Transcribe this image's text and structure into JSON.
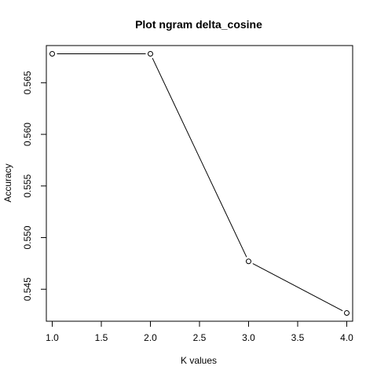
{
  "chart_data": {
    "type": "line",
    "title": "Plot ngram delta_cosine",
    "xlabel": "K values",
    "ylabel": "Accuracy",
    "x": [
      1,
      2,
      3,
      4
    ],
    "y": [
      0.5678,
      0.5678,
      0.5477,
      0.5427
    ],
    "xlim": [
      0.94,
      4.06
    ],
    "ylim": [
      0.5419,
      0.5686
    ],
    "xticks": [
      1.0,
      1.5,
      2.0,
      2.5,
      3.0,
      3.5,
      4.0
    ],
    "xtick_labels": [
      "1.0",
      "1.5",
      "2.0",
      "2.5",
      "3.0",
      "3.5",
      "4.0"
    ],
    "yticks": [
      0.545,
      0.55,
      0.555,
      0.56,
      0.565
    ],
    "ytick_labels": [
      "0.545",
      "0.550",
      "0.555",
      "0.560",
      "0.565"
    ],
    "grid": false,
    "marker": "open-circle",
    "line_color": "#000000"
  }
}
